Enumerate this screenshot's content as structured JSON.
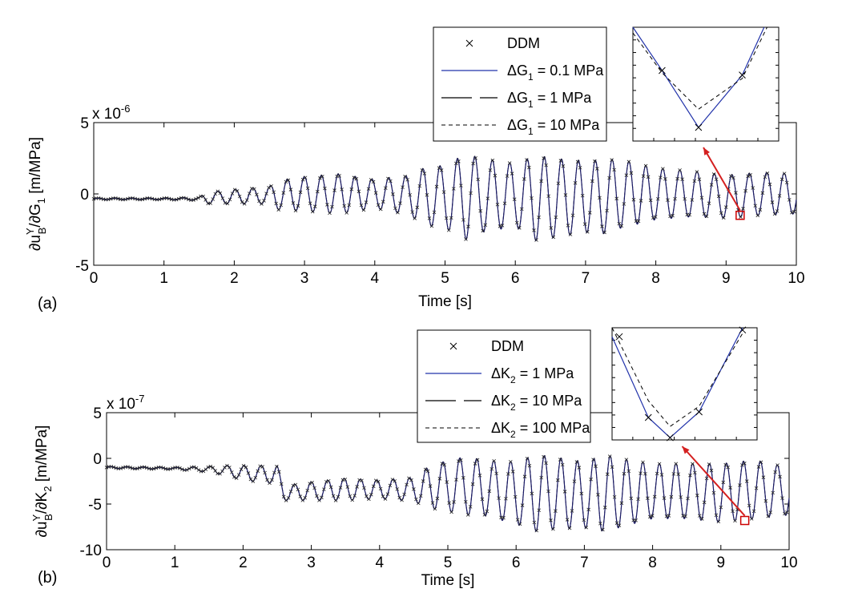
{
  "colors": {
    "dense": "#1a1a66",
    "blue": "#2233aa",
    "box": "#cc0000",
    "arrow": "#d42020"
  },
  "chart_data": [
    {
      "panel_label": "(a)",
      "type": "line",
      "ylabel": {
        "main": "∂u",
        "sup": "Y",
        "sub": "B",
        "rest": "/∂G",
        "sub2": "1",
        "unit": " [m/MPa]"
      },
      "xlabel": "Time [s]",
      "multiplier": {
        "base": "x 10",
        "exp": "-6"
      },
      "xlim": [
        0,
        10
      ],
      "ylim": [
        -5,
        5
      ],
      "xticks": [
        0,
        1,
        2,
        3,
        4,
        5,
        6,
        7,
        8,
        9,
        10
      ],
      "xtick_labels": [
        "0",
        "1",
        "2",
        "3",
        "4",
        "5",
        "6",
        "7",
        "8",
        "9",
        "10"
      ],
      "yticks": [
        -5,
        0,
        5
      ],
      "ytick_labels": [
        "-5",
        "0",
        "5"
      ],
      "legend": [
        {
          "style": "marker",
          "label": "DDM"
        },
        {
          "style": "solid-blue",
          "pre": "ΔG",
          "sub": "1",
          "post": " = 0.1 MPa"
        },
        {
          "style": "dashdot",
          "pre": "ΔG",
          "sub": "1",
          "post": " = 1 MPa"
        },
        {
          "style": "dashed",
          "pre": "ΔG",
          "sub": "1",
          "post": " = 10 MPa"
        }
      ],
      "envelope": {
        "t": [
          0,
          1.0,
          1.5,
          1.6,
          2.0,
          2.5,
          2.6,
          3.0,
          3.5,
          4.0,
          4.5,
          4.7,
          5.0,
          5.3,
          5.5,
          6.0,
          6.3,
          6.5,
          7.0,
          7.3,
          7.5,
          8.0,
          8.5,
          9.0,
          9.5,
          10
        ],
        "center": [
          -0.35,
          -0.35,
          -0.35,
          -0.3,
          -0.2,
          -0.1,
          -0.1,
          0,
          0,
          0,
          -0.1,
          -0.2,
          -0.2,
          -0.2,
          -0.1,
          -0.1,
          -0.3,
          -0.3,
          -0.2,
          -0.2,
          0,
          0,
          0,
          -0.2,
          0,
          0
        ],
        "amplitude": [
          0.05,
          0.05,
          0.1,
          0.4,
          0.5,
          0.6,
          1.0,
          1.2,
          1.4,
          1.0,
          1.4,
          2.0,
          2.2,
          3.0,
          2.6,
          2.2,
          3.0,
          2.8,
          2.5,
          2.6,
          2.4,
          1.8,
          1.6,
          1.5,
          1.5,
          1.4
        ]
      },
      "freq_hz": 4.1,
      "inset": {
        "shape": "V",
        "series": [
          {
            "name": "solid",
            "points": [
              [
                0.0,
                1.0
              ],
              [
                0.2,
                0.62
              ],
              [
                0.45,
                0.12
              ],
              [
                0.75,
                0.58
              ],
              [
                0.9,
                1.0
              ]
            ]
          },
          {
            "name": "dashed",
            "points": [
              [
                0.0,
                0.95
              ],
              [
                0.2,
                0.6
              ],
              [
                0.45,
                0.28
              ],
              [
                0.75,
                0.55
              ],
              [
                0.92,
                1.0
              ]
            ]
          }
        ],
        "markers": [
          [
            0.2,
            0.62
          ],
          [
            0.45,
            0.12
          ],
          [
            0.75,
            0.58
          ]
        ]
      },
      "zoom_box_point": [
        9.2,
        -1.5
      ]
    },
    {
      "panel_label": "(b)",
      "type": "line",
      "ylabel": {
        "main": "∂u",
        "sup": "Y",
        "sub": "B",
        "rest": "/∂K",
        "sub2": "2",
        "unit": " [m/MPa]"
      },
      "xlabel": "Time [s]",
      "multiplier": {
        "base": "x 10",
        "exp": "-7"
      },
      "xlim": [
        0,
        10
      ],
      "ylim": [
        -10,
        5
      ],
      "xticks": [
        0,
        1,
        2,
        3,
        4,
        5,
        6,
        7,
        8,
        9,
        10
      ],
      "xtick_labels": [
        "0",
        "1",
        "2",
        "3",
        "4",
        "5",
        "6",
        "7",
        "8",
        "9",
        "10"
      ],
      "yticks": [
        -10,
        -5,
        0,
        5
      ],
      "ytick_labels": [
        "-10",
        "-5",
        "0",
        "5"
      ],
      "legend": [
        {
          "style": "marker",
          "label": "DDM"
        },
        {
          "style": "solid-blue",
          "pre": "ΔK",
          "sub": "2",
          "post": " = 1 MPa"
        },
        {
          "style": "dashdot",
          "pre": "ΔK",
          "sub": "2",
          "post": " = 10 MPa"
        },
        {
          "style": "dashed",
          "pre": "ΔK",
          "sub": "2",
          "post": " = 100 MPa"
        }
      ],
      "envelope": {
        "t": [
          0,
          1.0,
          1.5,
          1.7,
          2.0,
          2.5,
          2.6,
          3.0,
          3.5,
          4.0,
          4.5,
          4.7,
          5.0,
          5.3,
          5.5,
          6.0,
          6.3,
          6.5,
          7.0,
          7.3,
          7.5,
          8.0,
          8.5,
          9.0,
          9.5,
          10
        ],
        "center": [
          -1.0,
          -1.1,
          -1.2,
          -1.3,
          -1.6,
          -1.8,
          -3.8,
          -3.6,
          -3.4,
          -3.4,
          -3.4,
          -3.2,
          -3.0,
          -3.0,
          -3.2,
          -3.8,
          -3.8,
          -3.8,
          -4.0,
          -3.8,
          -3.8,
          -3.6,
          -3.6,
          -3.8,
          -3.4,
          -3.6
        ],
        "amplitude": [
          0.1,
          0.1,
          0.3,
          0.5,
          0.8,
          1.0,
          0.8,
          1.0,
          1.2,
          1.0,
          1.3,
          2.2,
          2.8,
          3.2,
          3.0,
          3.4,
          4.2,
          4.0,
          3.6,
          4.2,
          3.8,
          3.0,
          3.0,
          3.2,
          3.2,
          2.6
        ]
      },
      "freq_hz": 4.1,
      "inset": {
        "shape": "V",
        "series": [
          {
            "name": "solid",
            "points": [
              [
                0.0,
                0.92
              ],
              [
                0.25,
                0.2
              ],
              [
                0.4,
                0.02
              ],
              [
                0.6,
                0.25
              ],
              [
                0.9,
                1.0
              ]
            ]
          },
          {
            "name": "dashed",
            "points": [
              [
                0.0,
                1.0
              ],
              [
                0.25,
                0.35
              ],
              [
                0.4,
                0.12
              ],
              [
                0.6,
                0.3
              ],
              [
                0.9,
                0.95
              ]
            ]
          }
        ],
        "markers": [
          [
            0.05,
            0.92
          ],
          [
            0.25,
            0.2
          ],
          [
            0.4,
            0.02
          ],
          [
            0.6,
            0.25
          ],
          [
            0.9,
            0.98
          ]
        ]
      },
      "zoom_box_point": [
        9.35,
        -6.8
      ]
    }
  ]
}
